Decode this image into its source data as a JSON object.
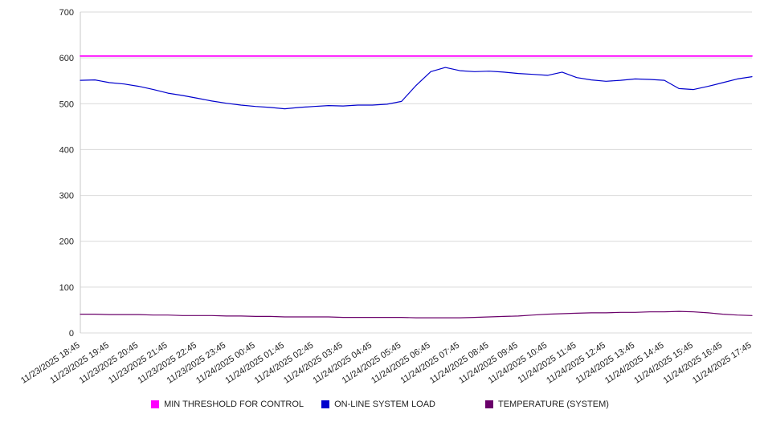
{
  "chart_data": {
    "type": "line",
    "title": "",
    "xlabel": "",
    "ylabel": "",
    "ylim": [
      0,
      700
    ],
    "y_ticks": [
      0,
      100,
      200,
      300,
      400,
      500,
      600,
      700
    ],
    "grid": "horizontal",
    "legend_position": "bottom",
    "points_per_label_interval": 2,
    "x_labels": [
      "11/23/2025 18:45",
      "11/23/2025 19:45",
      "11/23/2025 20:45",
      "11/23/2025 21:45",
      "11/23/2025 22:45",
      "11/23/2025 23:45",
      "11/24/2025 00:45",
      "11/24/2025 01:45",
      "11/24/2025 02:45",
      "11/24/2025 03:45",
      "11/24/2025 04:45",
      "11/24/2025 05:45",
      "11/24/2025 06:45",
      "11/24/2025 07:45",
      "11/24/2025 08:45",
      "11/24/2025 09:45",
      "11/24/2025 10:45",
      "11/24/2025 11:45",
      "11/24/2025 12:45",
      "11/24/2025 13:45",
      "11/24/2025 14:45",
      "11/24/2025 15:45",
      "11/24/2025 16:45",
      "11/24/2025 17:45"
    ],
    "series": [
      {
        "id": "min-threshold-for-control",
        "name": "MIN THRESHOLD FOR CONTROL",
        "color": "#ff00ff",
        "width": 1.8,
        "constant": 604
      },
      {
        "id": "online-system-load",
        "name": "ON-LINE SYSTEM LOAD",
        "color": "#0000cd",
        "width": 1.2,
        "values": [
          551,
          552,
          546,
          543,
          538,
          531,
          523,
          518,
          512,
          506,
          501,
          497,
          494,
          492,
          489,
          492,
          494,
          496,
          495,
          497,
          497,
          499,
          505,
          540,
          570,
          579,
          572,
          570,
          571,
          569,
          566,
          564,
          562,
          569,
          557,
          552,
          549,
          551,
          554,
          553,
          551,
          533,
          531,
          538,
          546,
          554,
          559
        ]
      },
      {
        "id": "temperature-system",
        "name": "TEMPERATURE (SYSTEM)",
        "color": "#6a006a",
        "width": 1.2,
        "values": [
          41,
          41,
          40,
          40,
          40,
          39,
          39,
          38,
          38,
          38,
          37,
          37,
          36,
          36,
          35,
          35,
          35,
          35,
          34,
          34,
          34,
          34,
          34,
          33,
          33,
          33,
          33,
          34,
          35,
          36,
          37,
          39,
          41,
          42,
          43,
          44,
          44,
          45,
          45,
          46,
          46,
          47,
          46,
          44,
          41,
          39,
          38
        ]
      }
    ]
  }
}
